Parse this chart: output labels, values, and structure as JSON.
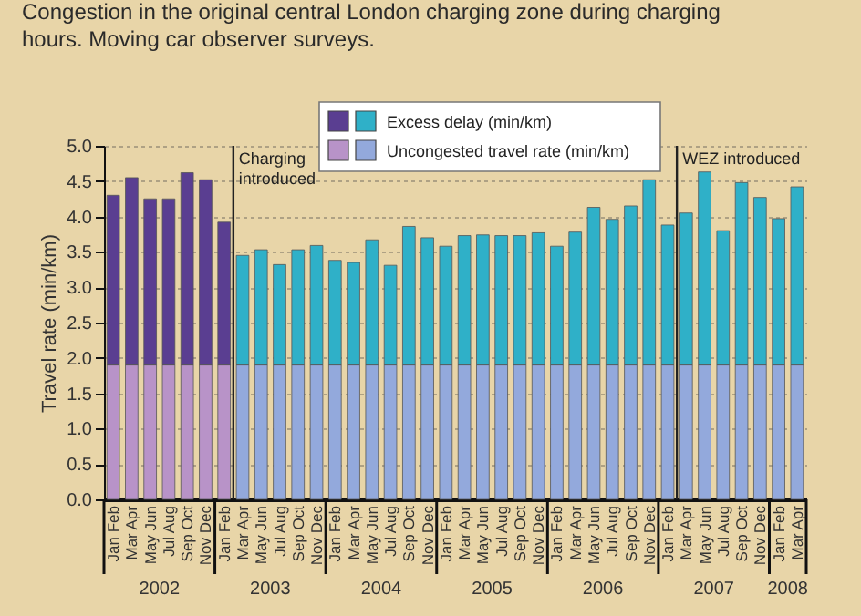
{
  "chart_data": {
    "type": "bar",
    "stacked": true,
    "title": "Congestion in the original central London charging zone during charging hours. Moving car observer surveys.",
    "ylabel": "Travel rate (min/km)",
    "categories": [
      "Jan Feb",
      "Mar Apr",
      "May Jun",
      "Jul Aug",
      "Sep Oct",
      "Nov Dec",
      "Jan Feb",
      "Mar Apr",
      "May Jun",
      "Jul Aug",
      "Sep Oct",
      "Nov Dec",
      "Jan Feb",
      "Mar Apr",
      "May Jun",
      "Jul Aug",
      "Sep Oct",
      "Nov Dec",
      "Jan Feb",
      "Mar Apr",
      "May Jun",
      "Jul Aug",
      "Sep Oct",
      "Nov Dec",
      "Jan Feb",
      "Mar Apr",
      "May Jun",
      "Jul Aug",
      "Sep Oct",
      "Nov Dec",
      "Jan Feb",
      "Mar Apr",
      "May Jun",
      "Jul Aug",
      "Sep Oct",
      "Nov Dec",
      "Jan Feb",
      "Mar Apr"
    ],
    "series": [
      {
        "name": "Uncongested travel rate (min/km)",
        "colors": [
          "#b893c8",
          "#b893c8",
          "#b893c8",
          "#b893c8",
          "#b893c8",
          "#b893c8",
          "#b893c8",
          "#93a9dc",
          "#93a9dc",
          "#93a9dc",
          "#93a9dc",
          "#93a9dc",
          "#93a9dc",
          "#93a9dc",
          "#93a9dc",
          "#93a9dc",
          "#93a9dc",
          "#93a9dc",
          "#93a9dc",
          "#93a9dc",
          "#93a9dc",
          "#93a9dc",
          "#93a9dc",
          "#93a9dc",
          "#93a9dc",
          "#93a9dc",
          "#93a9dc",
          "#93a9dc",
          "#93a9dc",
          "#93a9dc",
          "#93a9dc",
          "#93a9dc",
          "#93a9dc",
          "#93a9dc",
          "#93a9dc",
          "#93a9dc",
          "#93a9dc",
          "#93a9dc"
        ],
        "values": [
          1.9,
          1.9,
          1.9,
          1.9,
          1.9,
          1.9,
          1.9,
          1.9,
          1.9,
          1.9,
          1.9,
          1.9,
          1.9,
          1.9,
          1.9,
          1.9,
          1.9,
          1.9,
          1.9,
          1.9,
          1.9,
          1.9,
          1.9,
          1.9,
          1.9,
          1.9,
          1.9,
          1.9,
          1.9,
          1.9,
          1.9,
          1.9,
          1.9,
          1.9,
          1.9,
          1.9,
          1.9,
          1.9
        ]
      },
      {
        "name": "Excess delay (min/km)",
        "colors": [
          "#5a3e91",
          "#5a3e91",
          "#5a3e91",
          "#5a3e91",
          "#5a3e91",
          "#5a3e91",
          "#5a3e91",
          "#2fb0c8",
          "#2fb0c8",
          "#2fb0c8",
          "#2fb0c8",
          "#2fb0c8",
          "#2fb0c8",
          "#2fb0c8",
          "#2fb0c8",
          "#2fb0c8",
          "#2fb0c8",
          "#2fb0c8",
          "#2fb0c8",
          "#2fb0c8",
          "#2fb0c8",
          "#2fb0c8",
          "#2fb0c8",
          "#2fb0c8",
          "#2fb0c8",
          "#2fb0c8",
          "#2fb0c8",
          "#2fb0c8",
          "#2fb0c8",
          "#2fb0c8",
          "#2fb0c8",
          "#2fb0c8",
          "#2fb0c8",
          "#2fb0c8",
          "#2fb0c8",
          "#2fb0c8",
          "#2fb0c8",
          "#2fb0c8"
        ],
        "values": [
          2.4,
          2.65,
          2.35,
          2.35,
          2.72,
          2.62,
          2.02,
          1.55,
          1.63,
          1.42,
          1.63,
          1.69,
          1.48,
          1.45,
          1.77,
          1.41,
          1.96,
          1.8,
          1.68,
          1.83,
          1.84,
          1.83,
          1.83,
          1.87,
          1.68,
          1.88,
          2.23,
          2.06,
          2.25,
          2.62,
          1.98,
          2.15,
          2.73,
          1.9,
          2.58,
          2.37,
          2.07,
          2.52
        ]
      }
    ],
    "ylim": [
      0,
      5
    ],
    "yticks": [
      {
        "value": 0,
        "label": "0.0"
      },
      {
        "value": 0.5,
        "label": "0.5"
      },
      {
        "value": 1,
        "label": "1.0"
      },
      {
        "value": 1.5,
        "label": "1.5"
      },
      {
        "value": 2,
        "label": "2.0"
      },
      {
        "value": 2.5,
        "label": "2.5"
      },
      {
        "value": 3,
        "label": "3.0"
      },
      {
        "value": 3.5,
        "label": "3.5"
      },
      {
        "value": 4,
        "label": "4.0"
      },
      {
        "value": 4.5,
        "label": "4.5"
      },
      {
        "value": 5,
        "label": "5.0"
      }
    ],
    "grid": "y",
    "legend": "top",
    "annotations": [
      "2002",
      "2003",
      "2004",
      "2005",
      "2006",
      "2007",
      "2008",
      "Charging introduced",
      "WEZ introduced"
    ]
  }
}
